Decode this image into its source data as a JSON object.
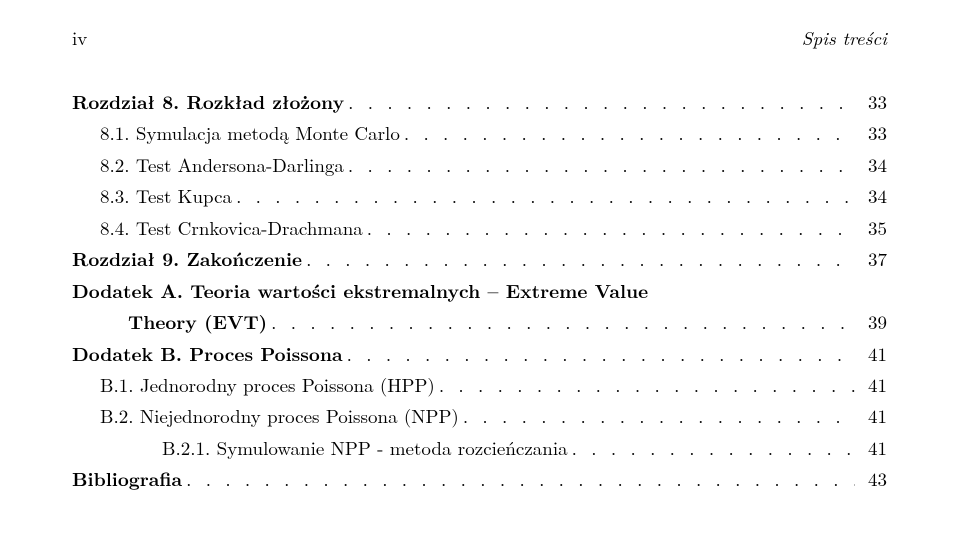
{
  "running_head": {
    "left": "iv",
    "right": "Spis treści"
  },
  "entries": [
    {
      "indent": 0,
      "bold": true,
      "label": "Rozdział 8. Rozkład złożony",
      "page": "33"
    },
    {
      "indent": 1,
      "bold": false,
      "label": "8.1.   Symulacja metodą Monte Carlo",
      "page": "33"
    },
    {
      "indent": 1,
      "bold": false,
      "label": "8.2.   Test Andersona-Darlinga",
      "page": "34"
    },
    {
      "indent": 1,
      "bold": false,
      "label": "8.3.   Test Kupca",
      "page": "34"
    },
    {
      "indent": 1,
      "bold": false,
      "label": "8.4.   Test Crnkovica-Drachmana",
      "page": "35"
    },
    {
      "indent": 0,
      "bold": true,
      "label": "Rozdział 9. Zakończenie",
      "page": "37"
    },
    {
      "indent": 0,
      "bold": true,
      "label": "Dodatek A. Teoria wartości ekstremalnych – Extreme Value",
      "continuation": "Theory (EVT)",
      "page": "39"
    },
    {
      "indent": 0,
      "bold": true,
      "label": "Dodatek B. Proces Poissona",
      "page": "41"
    },
    {
      "indent": 1,
      "bold": false,
      "label": "B.1.   Jednorodny proces Poissona (HPP)",
      "page": "41"
    },
    {
      "indent": 1,
      "bold": false,
      "label": "B.2.   Niejednorodny proces Poissona (NPP)",
      "page": "41"
    },
    {
      "indent": 2,
      "bold": false,
      "label": "B.2.1.   Symulowanie NPP - metoda rozcieńczania",
      "page": "41"
    },
    {
      "indent": 0,
      "bold": true,
      "label": "Bibliografia",
      "page": "43"
    }
  ]
}
